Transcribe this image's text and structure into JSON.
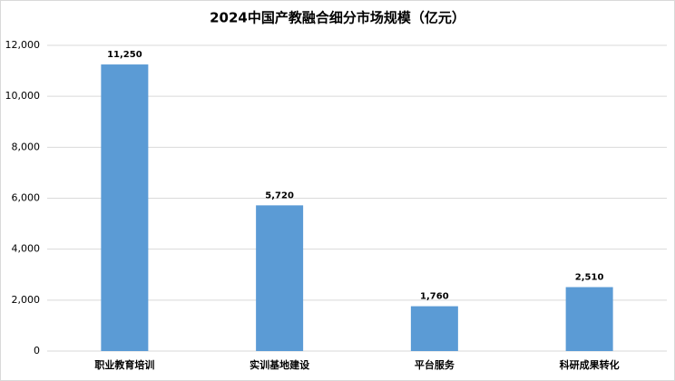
{
  "chart_data": {
    "type": "bar",
    "title": "2024中国产教融合细分市场规模（亿元）",
    "categories": [
      "职业教育培训",
      "实训基地建设",
      "平台服务",
      "科研成果转化"
    ],
    "values": [
      11250,
      5720,
      1760,
      2510
    ],
    "value_labels": [
      "11,250",
      "5,720",
      "1,760",
      "2,510"
    ],
    "color": "#5b9bd5",
    "ylim": [
      0,
      12000
    ],
    "yticks": [
      0,
      {
        "value": 2000,
        "label": "2,000"
      },
      {
        "value": 4000,
        "label": "4,000"
      },
      {
        "value": 6000,
        "label": "6,000"
      },
      {
        "value": 8000,
        "label": "8,000"
      },
      {
        "value": 10000,
        "label": "10,000"
      },
      {
        "value": 12000,
        "label": "12,000"
      }
    ],
    "grid": true
  }
}
